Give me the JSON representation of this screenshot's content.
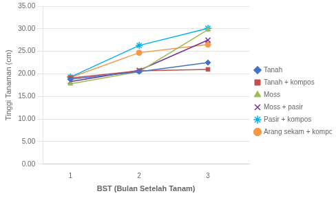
{
  "chart_data": {
    "type": "line",
    "x": [
      1,
      2,
      3
    ],
    "series": [
      {
        "name": "Tanah",
        "values": [
          18.8,
          20.5,
          22.5
        ],
        "color": "#4472C4",
        "marker": "diamond"
      },
      {
        "name": "Tanah + kompos",
        "values": [
          19.1,
          20.7,
          21.0
        ],
        "color": "#C0504D",
        "marker": "square"
      },
      {
        "name": "Moss",
        "values": [
          17.8,
          20.5,
          29.8
        ],
        "color": "#9BBB59",
        "marker": "triangle"
      },
      {
        "name": "Moss + pasir",
        "values": [
          18.3,
          20.8,
          27.5
        ],
        "color": "#7030A0",
        "marker": "x"
      },
      {
        "name": "Pasir + kompos",
        "values": [
          19.3,
          26.3,
          30.1
        ],
        "color": "#00B0F0",
        "marker": "star"
      },
      {
        "name": "Arang sekam + kompos",
        "values": [
          19.2,
          24.7,
          26.5
        ],
        "color": "#F79646",
        "marker": "circle"
      }
    ],
    "xlabel": "BST (Bulan Setelah Tanam)",
    "ylabel": "Tinggi Tanaman (cm)",
    "xlim": [
      0.6,
      3.6
    ],
    "xticks": [
      1,
      2,
      3
    ],
    "ylim": [
      0,
      35
    ],
    "yticks": [
      {
        "value": 0,
        "label": "0.00"
      },
      {
        "value": 5,
        "label": "5.00"
      },
      {
        "value": 10,
        "label": "10.00"
      },
      {
        "value": 15,
        "label": "15.00"
      },
      {
        "value": 20,
        "label": "20.00"
      },
      {
        "value": 25,
        "label": "25.00"
      },
      {
        "value": 30,
        "label": "30.00"
      },
      {
        "value": 35,
        "label": "35.00"
      }
    ],
    "grid": "y",
    "legend": "right"
  }
}
